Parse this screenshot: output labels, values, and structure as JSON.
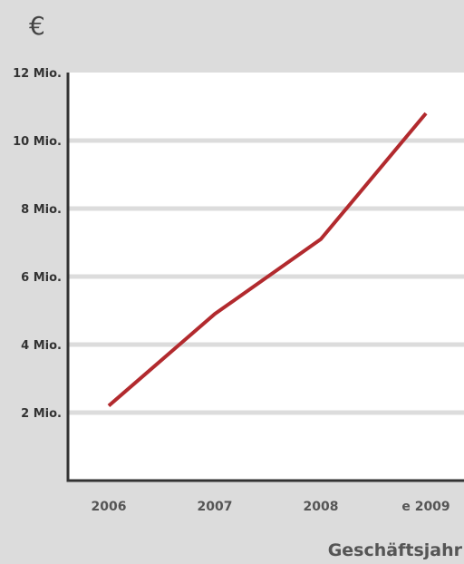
{
  "chart_data": {
    "type": "line",
    "unit_label": "€",
    "xlabel": "Geschäftsjahr",
    "ylabel": "",
    "categories": [
      "2006",
      "2007",
      "2008",
      "e 2009"
    ],
    "series": [
      {
        "values": [
          2.2,
          4.9,
          7.1,
          10.8
        ],
        "color": "#b22a2e"
      }
    ],
    "ylim": [
      0,
      12
    ],
    "yticks": [
      2,
      4,
      6,
      8,
      10,
      12
    ],
    "ytick_labels": [
      "2 Mio.",
      "4 Mio.",
      "6 Mio.",
      "8 Mio.",
      "10 Mio.",
      "12 Mio."
    ],
    "grid": true,
    "colors": {
      "background": "#dcdcdc",
      "plot_area": "#ffffff",
      "grid": "#dcdcdc",
      "axis": "#333333"
    }
  }
}
